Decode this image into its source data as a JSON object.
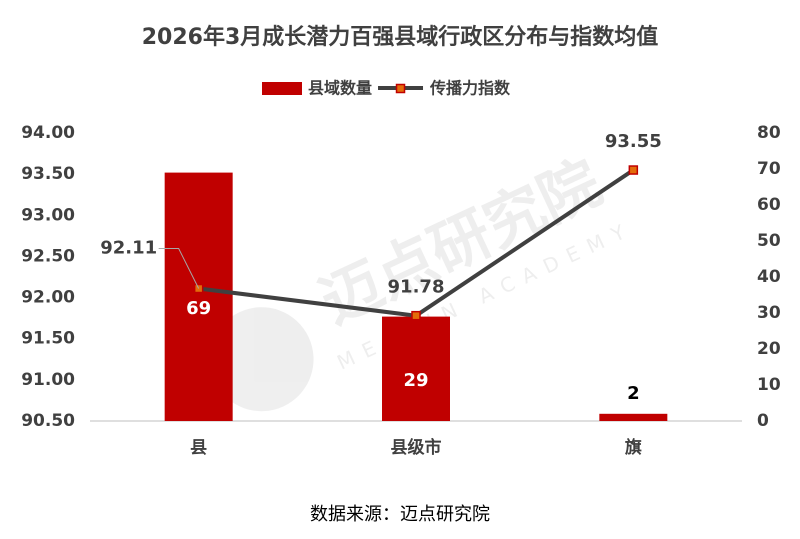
{
  "chart_data": {
    "type": "combo",
    "title": "2026年3月成长潜力百强县域行政区分布与指数均值",
    "categories": [
      "县",
      "县级市",
      "旗"
    ],
    "series": [
      {
        "name": "县域数量",
        "type": "bar",
        "axis": "y2",
        "color": "#c00000",
        "values": [
          69,
          29,
          2
        ]
      },
      {
        "name": "传播力指数",
        "type": "line",
        "axis": "y",
        "color": "#404040",
        "marker_color": "#e36c0a",
        "values": [
          92.11,
          91.78,
          93.55
        ]
      }
    ],
    "ylim": [
      90.5,
      94
    ],
    "yticks": [
      {
        "value": 90.5,
        "label": "90.50"
      },
      {
        "value": 91,
        "label": "91.00"
      },
      {
        "value": 91.5,
        "label": "91.50"
      },
      {
        "value": 92,
        "label": "92.00"
      },
      {
        "value": 92.5,
        "label": "92.50"
      },
      {
        "value": 93,
        "label": "93.00"
      },
      {
        "value": 93.5,
        "label": "93.50"
      },
      {
        "value": 94,
        "label": "94.00"
      }
    ],
    "y2lim": [
      0,
      80
    ],
    "y2ticks": [
      0,
      10,
      20,
      30,
      40,
      50,
      60,
      70,
      80
    ],
    "legend": "top",
    "grid": false,
    "watermark": [
      "迈点研究院",
      "MEADIN ACADEMY"
    ],
    "source": "数据来源：迈点研究院"
  }
}
